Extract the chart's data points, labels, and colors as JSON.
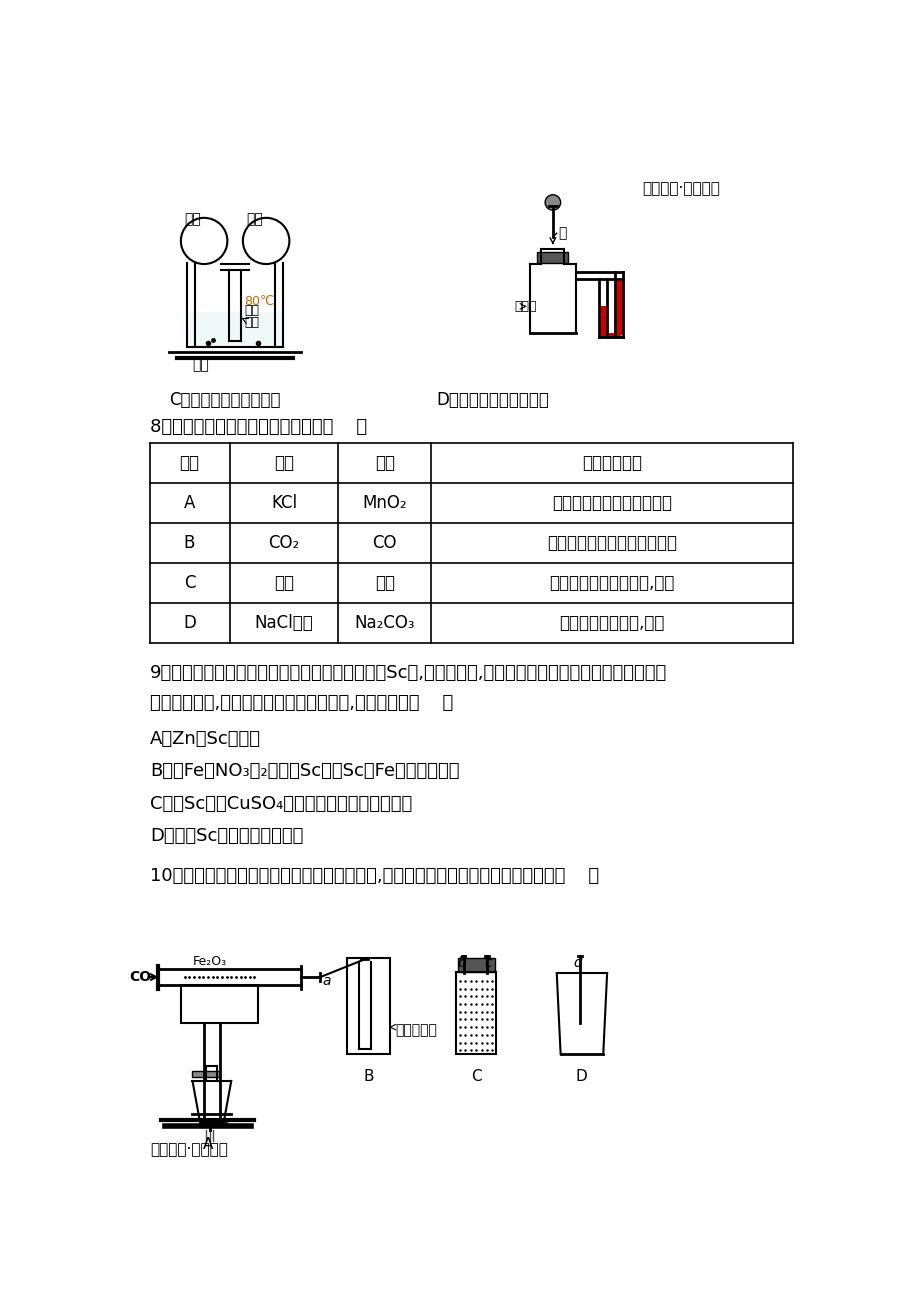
{
  "bg_color": "#ffffff",
  "header_text": "化学精品·备战中考",
  "footer_text": "专项突破·战胜中考",
  "q8_title": "8．下列除去杂质的方法中正确的是（    ）",
  "table_headers": [
    "选项",
    "物质",
    "杂质",
    "除杂质的方法"
  ],
  "table_row_A": [
    "A",
    "KCl",
    "MnO₂",
    "加适量水溶解、过滤、蕲发"
  ],
  "table_row_B": [
    "B",
    "CO₂",
    "CO",
    "将气体通入足量氢氧化钓溶液"
  ],
  "table_row_C": [
    "C",
    "銀粉",
    "锥粉",
    "加入过量硫酸亚鐵溶液,过滤"
  ],
  "table_row_D": [
    "D",
    "NaCl溶液",
    "Na₂CO₃",
    "加适量硫酸钓溶液,过滤"
  ],
  "q9_line1": "9．我国首舰国产航母的合金材料中含有合金钖（Sc）,相同条件下,取相同状态的金属钖和锥分别与相同浓",
  "q9_line2": "度的盐酸反应,钖产生气泡的速率明显更快,由此可推断（    ）",
  "q9_optA": "A．Zn比Sc更活泼",
  "q9_optB": "B．用Fe（NO₃）₂溶液和Sc能验Sc和Fe的活动性强弱",
  "q9_optC": "C．将Sc投入CuSO₄溶液中不会有红色物质析出",
  "q9_optD": "D．单质Sc一定不能和水反应",
  "q10_title": "10．某化学兴趣小组用以下装置探究炼鐵原理,关于该装置和反应过程描述错误的是（    ）",
  "label_C": "C．探究可燃物燃烧条件",
  "label_D": "D．验证硫酸铵溶解吸热"
}
